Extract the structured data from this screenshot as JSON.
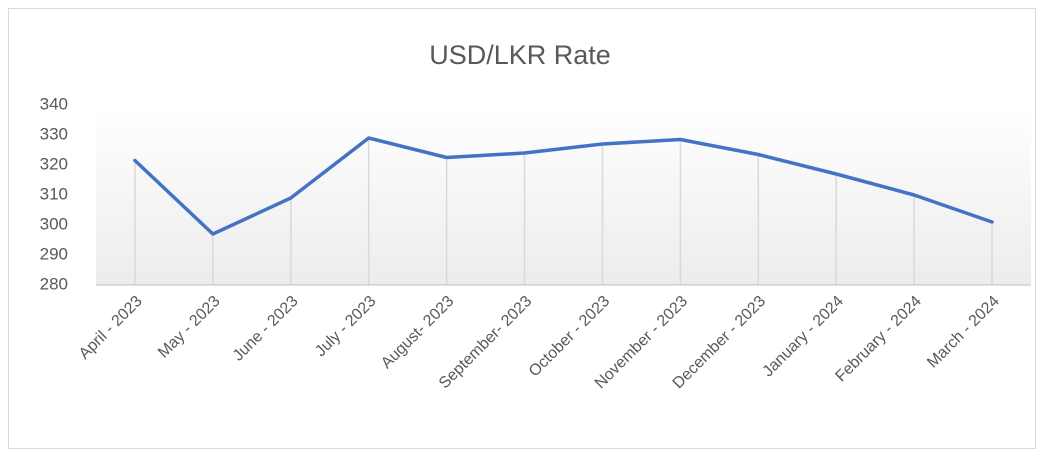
{
  "chart_data": {
    "type": "line",
    "title": "USD/LKR Rate",
    "categories": [
      "April - 2023",
      "May - 2023",
      "June - 2023",
      "July - 2023",
      "August- 2023",
      "September- 2023",
      "October - 2023",
      "November - 2023",
      "December - 2023",
      "January - 2024",
      "February - 2024",
      "March - 2024"
    ],
    "series": [
      {
        "name": "USD/LKR Rate",
        "color": "#4472c4",
        "values": [
          321.5,
          297,
          309,
          329,
          322.5,
          324,
          327,
          328.5,
          323.5,
          317,
          310,
          301
        ]
      }
    ],
    "ylim": [
      280,
      340
    ],
    "yticks": [
      280,
      290,
      300,
      310,
      320,
      330,
      340
    ],
    "drop_lines": true
  }
}
